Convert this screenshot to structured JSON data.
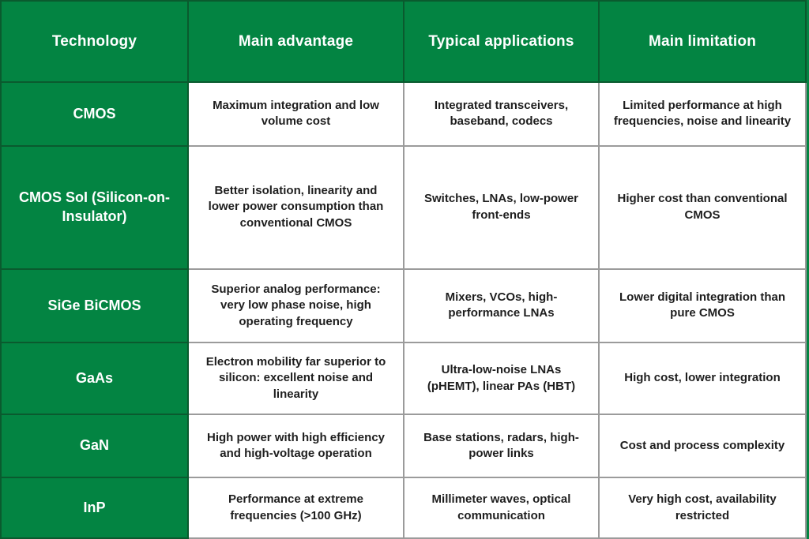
{
  "colors": {
    "green": "#038442",
    "green_border": "#0a5a2e",
    "white_cell_border": "#9b9b9b",
    "header_text": "#ffffff",
    "body_text": "#1e1e1e"
  },
  "table": {
    "headers": [
      "Technology",
      "Main advantage",
      "Typical applications",
      "Main limitation"
    ],
    "rows": [
      {
        "tech": "CMOS",
        "advantage": "Maximum integration and low volume cost",
        "applications": "Integrated transceivers, baseband, codecs",
        "limitation": "Limited performance at high frequencies, noise and linearity"
      },
      {
        "tech": "CMOS SoI (Silicon-on-Insulator)",
        "advantage": "Better isolation, linearity and lower power consumption than conventional CMOS",
        "applications": "Switches, LNAs, low-power front-ends",
        "limitation": "Higher cost than conventional CMOS"
      },
      {
        "tech": "SiGe BiCMOS",
        "advantage": "Superior analog performance: very low phase noise, high operating frequency",
        "applications": "Mixers, VCOs, high-performance LNAs",
        "limitation": "Lower digital integration than pure CMOS"
      },
      {
        "tech": "GaAs",
        "advantage": "Electron mobility far superior to silicon: excellent noise and linearity",
        "applications": "Ultra-low-noise LNAs (pHEMT), linear PAs (HBT)",
        "limitation": "High cost, lower integration"
      },
      {
        "tech": "GaN",
        "advantage": "High power with high efficiency and high-voltage operation",
        "applications": "Base stations, radars, high-power links",
        "limitation": "Cost and process complexity"
      },
      {
        "tech": "InP",
        "advantage": "Performance at extreme frequencies (>100 GHz)",
        "applications": "Millimeter waves, optical communication",
        "limitation": "Very high cost, availability restricted"
      }
    ]
  }
}
